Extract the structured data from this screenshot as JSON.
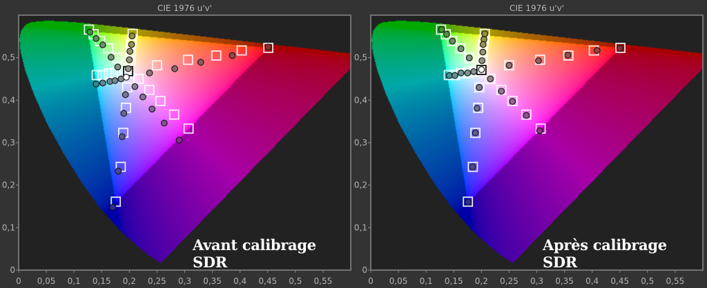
{
  "chart_data": [
    {
      "type": "scatter",
      "title": "CIE 1976 u'v'",
      "label": "Avant calibrage SDR",
      "xlim": [
        0,
        0.6
      ],
      "ylim": [
        0,
        0.6
      ],
      "xtick_values": [
        0,
        0.05,
        0.1,
        0.15,
        0.2,
        0.25,
        0.3,
        0.35,
        0.4,
        0.45,
        0.5,
        0.55
      ],
      "xtick_labels": [
        "0",
        "0,05",
        "0,1",
        "0,15",
        "0,2",
        "0,25",
        "0,3",
        "0,35",
        "0,4",
        "0,45",
        "0,5",
        "0,55"
      ],
      "ytick_values": [
        0,
        0.1,
        0.2,
        0.3,
        0.4,
        0.5
      ],
      "ytick_labels": [
        "0",
        "0,1",
        "0,2",
        "0,3",
        "0,4",
        "0,5"
      ],
      "gamut_triangle": [
        [
          0.451,
          0.523
        ],
        [
          0.125,
          0.5625
        ],
        [
          0.1754,
          0.1579
        ]
      ],
      "targets": [
        [
          0.127,
          0.566
        ],
        [
          0.1355,
          0.555
        ],
        [
          0.147,
          0.539
        ],
        [
          0.162,
          0.522
        ],
        [
          0.178,
          0.4995
        ],
        [
          0.206,
          0.556
        ],
        [
          0.2045,
          0.543
        ],
        [
          0.203,
          0.531
        ],
        [
          0.202,
          0.513
        ],
        [
          0.202,
          0.493
        ],
        [
          0.141,
          0.459
        ],
        [
          0.152,
          0.459
        ],
        [
          0.163,
          0.463
        ],
        [
          0.175,
          0.464
        ],
        [
          0.186,
          0.467
        ],
        [
          0.451,
          0.523
        ],
        [
          0.403,
          0.517
        ],
        [
          0.357,
          0.505
        ],
        [
          0.306,
          0.495
        ],
        [
          0.25,
          0.482
        ],
        [
          0.307,
          0.333
        ],
        [
          0.281,
          0.366
        ],
        [
          0.256,
          0.398
        ],
        [
          0.236,
          0.424
        ],
        [
          0.2166,
          0.45
        ],
        [
          0.1755,
          0.161
        ],
        [
          0.1845,
          0.243
        ],
        [
          0.189,
          0.323
        ],
        [
          0.194,
          0.382
        ],
        [
          0.196,
          0.43
        ]
      ],
      "white_target": [
        0.1978,
        0.4683
      ],
      "measured": [
        [
          0.129,
          0.56
        ],
        [
          0.14,
          0.545
        ],
        [
          0.152,
          0.53
        ],
        [
          0.167,
          0.501
        ],
        [
          0.179,
          0.478
        ],
        [
          0.205,
          0.551
        ],
        [
          0.204,
          0.531
        ],
        [
          0.201,
          0.515
        ],
        [
          0.2,
          0.495
        ],
        [
          0.198,
          0.474
        ],
        [
          0.14,
          0.438
        ],
        [
          0.152,
          0.4405
        ],
        [
          0.165,
          0.444
        ],
        [
          0.174,
          0.446
        ],
        [
          0.185,
          0.45
        ],
        [
          0.451,
          0.525
        ],
        [
          0.386,
          0.505
        ],
        [
          0.329,
          0.489
        ],
        [
          0.282,
          0.474
        ],
        [
          0.2365,
          0.464
        ],
        [
          0.29,
          0.306
        ],
        [
          0.263,
          0.346
        ],
        [
          0.241,
          0.379
        ],
        [
          0.2245,
          0.4075
        ],
        [
          0.21,
          0.432
        ],
        [
          0.17,
          0.148
        ],
        [
          0.18,
          0.233
        ],
        [
          0.187,
          0.314
        ],
        [
          0.19,
          0.369
        ],
        [
          0.193,
          0.413
        ]
      ],
      "white_measured": [
        0.1945,
        0.454
      ]
    },
    {
      "type": "scatter",
      "title": "CIE 1976 u'v'",
      "label": "Après calibrage SDR",
      "xlim": [
        0,
        0.6
      ],
      "ylim": [
        0,
        0.6
      ],
      "xtick_values": [
        0,
        0.05,
        0.1,
        0.15,
        0.2,
        0.25,
        0.3,
        0.35,
        0.4,
        0.45,
        0.5,
        0.55
      ],
      "xtick_labels": [
        "0",
        "0,05",
        "0,1",
        "0,15",
        "0,2",
        "0,25",
        "0,3",
        "0,35",
        "0,4",
        "0,45",
        "0,5",
        "0,55"
      ],
      "ytick_values": [
        0,
        0.1,
        0.2,
        0.3,
        0.4,
        0.5
      ],
      "ytick_labels": [
        "0",
        "0,1",
        "0,2",
        "0,3",
        "0,4",
        "0,5"
      ],
      "gamut_triangle": [
        [
          0.451,
          0.523
        ],
        [
          0.125,
          0.5625
        ],
        [
          0.1754,
          0.1579
        ]
      ],
      "targets": [
        [
          0.127,
          0.566
        ],
        [
          0.1355,
          0.555
        ],
        [
          0.147,
          0.539
        ],
        [
          0.162,
          0.522
        ],
        [
          0.178,
          0.4995
        ],
        [
          0.206,
          0.556
        ],
        [
          0.2045,
          0.543
        ],
        [
          0.203,
          0.531
        ],
        [
          0.202,
          0.513
        ],
        [
          0.202,
          0.493
        ],
        [
          0.141,
          0.459
        ],
        [
          0.152,
          0.459
        ],
        [
          0.163,
          0.463
        ],
        [
          0.175,
          0.464
        ],
        [
          0.186,
          0.467
        ],
        [
          0.451,
          0.523
        ],
        [
          0.403,
          0.517
        ],
        [
          0.357,
          0.505
        ],
        [
          0.306,
          0.495
        ],
        [
          0.25,
          0.482
        ],
        [
          0.307,
          0.333
        ],
        [
          0.281,
          0.366
        ],
        [
          0.256,
          0.398
        ],
        [
          0.236,
          0.424
        ],
        [
          0.2166,
          0.45
        ],
        [
          0.1755,
          0.161
        ],
        [
          0.1845,
          0.243
        ],
        [
          0.189,
          0.323
        ],
        [
          0.194,
          0.382
        ],
        [
          0.196,
          0.43
        ]
      ],
      "white_target": [
        0.2,
        0.471
      ],
      "measured": [
        [
          0.128,
          0.566
        ],
        [
          0.137,
          0.555
        ],
        [
          0.1475,
          0.539
        ],
        [
          0.163,
          0.521
        ],
        [
          0.178,
          0.4995
        ],
        [
          0.206,
          0.556
        ],
        [
          0.2045,
          0.543
        ],
        [
          0.203,
          0.531
        ],
        [
          0.2025,
          0.513
        ],
        [
          0.201,
          0.493
        ],
        [
          0.142,
          0.458
        ],
        [
          0.152,
          0.458
        ],
        [
          0.163,
          0.464
        ],
        [
          0.175,
          0.464
        ],
        [
          0.186,
          0.467
        ],
        [
          0.45,
          0.522
        ],
        [
          0.409,
          0.517
        ],
        [
          0.356,
          0.506
        ],
        [
          0.303,
          0.493
        ],
        [
          0.25,
          0.482
        ],
        [
          0.305,
          0.328
        ],
        [
          0.281,
          0.364
        ],
        [
          0.256,
          0.397
        ],
        [
          0.236,
          0.421
        ],
        [
          0.216,
          0.45
        ],
        [
          0.176,
          0.16
        ],
        [
          0.184,
          0.243
        ],
        [
          0.189,
          0.323
        ],
        [
          0.192,
          0.381
        ],
        [
          0.196,
          0.43
        ]
      ],
      "white_measured": [
        0.2,
        0.472
      ]
    }
  ]
}
